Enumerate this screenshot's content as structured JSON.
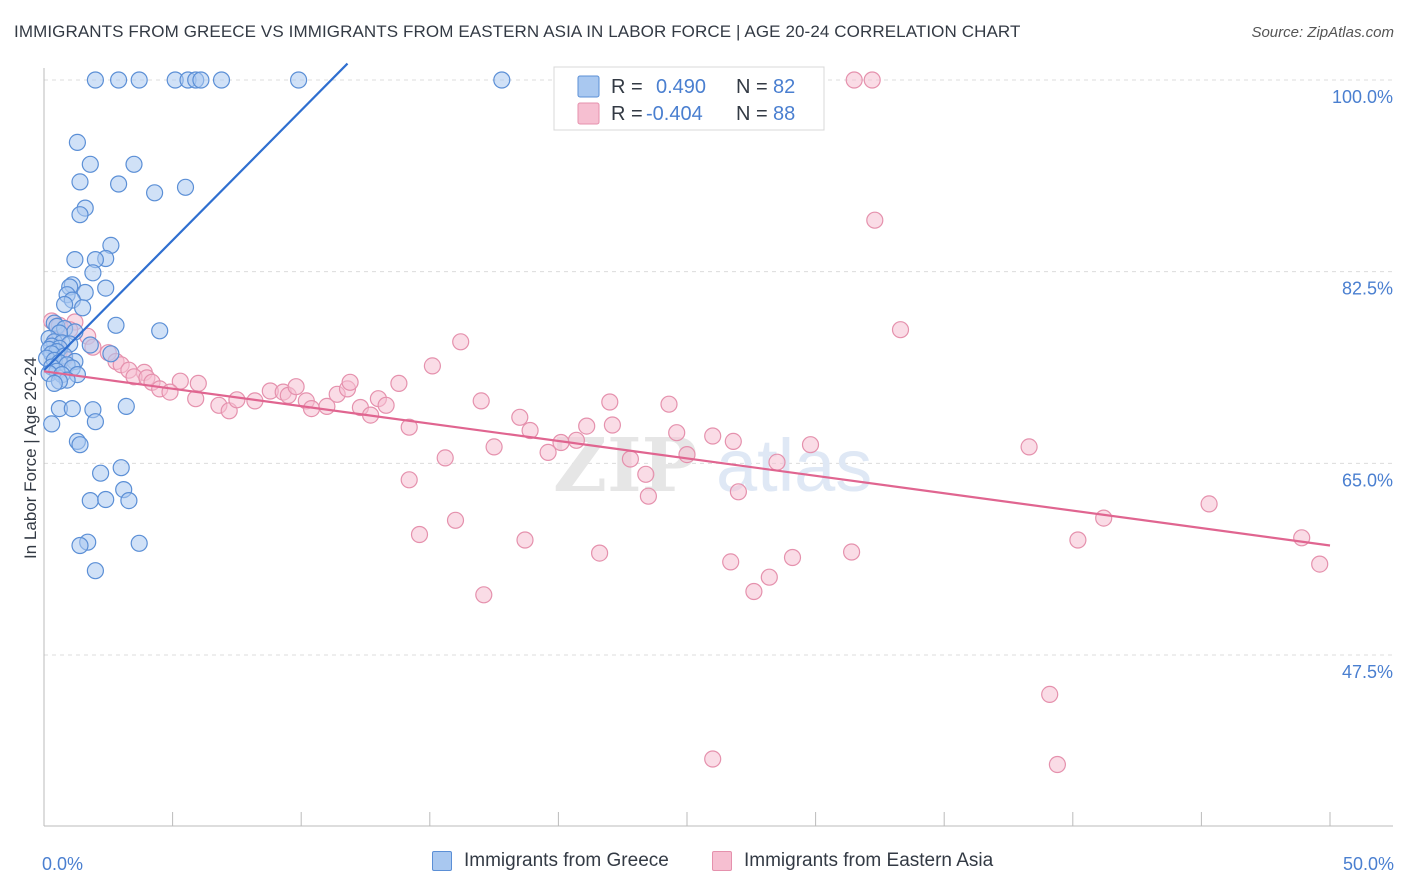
{
  "title": "IMMIGRANTS FROM GREECE VS IMMIGRANTS FROM EASTERN ASIA IN LABOR FORCE | AGE 20-24 CORRELATION CHART",
  "source": "Source: ZipAtlas.com",
  "watermark": {
    "part1": "ZIP",
    "part2": "atlas"
  },
  "colors": {
    "blue_fill": "#a9c8f0",
    "blue_stroke": "#5b8fd6",
    "blue_line": "#2f6fd0",
    "pink_fill": "#f6bfd1",
    "pink_stroke": "#e591ad",
    "pink_line": "#e06590",
    "grid": "#dcdcdc",
    "tick_text": "#4a7fd0"
  },
  "legend": {
    "r_label": "R =",
    "n_label": "N =",
    "entries": [
      {
        "r": "0.490",
        "n": "82"
      },
      {
        "r": "-0.404",
        "n": "88"
      }
    ]
  },
  "bottom_legend": [
    "Immigrants from Greece",
    "Immigrants from Eastern Asia"
  ],
  "chart_data": {
    "type": "scatter",
    "xlabel": "",
    "ylabel": "In Labor Force | Age 20-24",
    "x_ticks": [
      "0.0%",
      "50.0%"
    ],
    "y_ticks": [
      "100.0%",
      "82.5%",
      "65.0%",
      "47.5%"
    ],
    "y_tick_values": [
      100.0,
      82.5,
      65.0,
      47.5
    ],
    "xlim": [
      0,
      50
    ],
    "ylim": [
      33,
      101.5
    ],
    "grid": "horizontal dashed",
    "legend_position": "top-center",
    "series": [
      {
        "name": "Immigrants from Greece",
        "color": "#a9c8f0",
        "trend": {
          "x": [
            0,
            11.8
          ],
          "y": [
            73.5,
            101.5
          ]
        },
        "points": [
          [
            2.0,
            100
          ],
          [
            2.9,
            100
          ],
          [
            3.7,
            100
          ],
          [
            5.1,
            100
          ],
          [
            5.6,
            100
          ],
          [
            5.9,
            100
          ],
          [
            6.1,
            100
          ],
          [
            6.9,
            100
          ],
          [
            9.9,
            100
          ],
          [
            17.8,
            100
          ],
          [
            1.3,
            94.3
          ],
          [
            1.8,
            92.3
          ],
          [
            3.5,
            92.3
          ],
          [
            1.4,
            90.7
          ],
          [
            2.9,
            90.5
          ],
          [
            5.5,
            90.2
          ],
          [
            4.3,
            89.7
          ],
          [
            1.6,
            88.3
          ],
          [
            1.4,
            87.7
          ],
          [
            2.6,
            84.9
          ],
          [
            2.4,
            83.7
          ],
          [
            2.0,
            83.6
          ],
          [
            1.2,
            83.6
          ],
          [
            1.9,
            82.4
          ],
          [
            2.4,
            81.0
          ],
          [
            1.1,
            81.3
          ],
          [
            1.0,
            81.1
          ],
          [
            1.6,
            80.6
          ],
          [
            0.9,
            80.4
          ],
          [
            1.1,
            79.9
          ],
          [
            0.8,
            79.5
          ],
          [
            1.5,
            79.2
          ],
          [
            0.4,
            77.8
          ],
          [
            0.5,
            77.5
          ],
          [
            0.8,
            77.3
          ],
          [
            1.2,
            77.0
          ],
          [
            2.8,
            77.6
          ],
          [
            4.5,
            77.1
          ],
          [
            0.6,
            76.9
          ],
          [
            0.2,
            76.4
          ],
          [
            0.4,
            76.1
          ],
          [
            0.7,
            76.0
          ],
          [
            1.0,
            75.9
          ],
          [
            1.8,
            75.8
          ],
          [
            0.3,
            75.7
          ],
          [
            0.6,
            75.5
          ],
          [
            0.2,
            75.4
          ],
          [
            0.5,
            75.2
          ],
          [
            0.3,
            75.0
          ],
          [
            2.6,
            75.0
          ],
          [
            0.8,
            74.8
          ],
          [
            0.1,
            74.6
          ],
          [
            0.4,
            74.4
          ],
          [
            1.2,
            74.3
          ],
          [
            0.6,
            74.2
          ],
          [
            0.9,
            74.0
          ],
          [
            0.3,
            73.8
          ],
          [
            1.1,
            73.7
          ],
          [
            0.5,
            73.4
          ],
          [
            0.2,
            73.2
          ],
          [
            0.7,
            73.1
          ],
          [
            1.3,
            73.1
          ],
          [
            0.9,
            72.6
          ],
          [
            0.6,
            72.5
          ],
          [
            0.4,
            72.3
          ],
          [
            3.2,
            70.2
          ],
          [
            0.6,
            70.0
          ],
          [
            1.1,
            70.0
          ],
          [
            1.9,
            69.9
          ],
          [
            2.0,
            68.8
          ],
          [
            0.3,
            68.6
          ],
          [
            1.3,
            67.0
          ],
          [
            1.4,
            66.7
          ],
          [
            3.0,
            64.6
          ],
          [
            2.2,
            64.1
          ],
          [
            3.1,
            62.6
          ],
          [
            1.8,
            61.6
          ],
          [
            2.4,
            61.7
          ],
          [
            3.3,
            61.6
          ],
          [
            1.7,
            57.8
          ],
          [
            1.4,
            57.5
          ],
          [
            3.7,
            57.7
          ],
          [
            2.0,
            55.2
          ]
        ]
      },
      {
        "name": "Immigrants from Eastern Asia",
        "color": "#f6bfd1",
        "trend": {
          "x": [
            0,
            50
          ],
          "y": [
            73.4,
            57.5
          ]
        },
        "points": [
          [
            31.5,
            100
          ],
          [
            32.2,
            100
          ],
          [
            32.3,
            87.2
          ],
          [
            33.3,
            77.2
          ],
          [
            0.3,
            78.0
          ],
          [
            1.2,
            77.9
          ],
          [
            0.6,
            77.6
          ],
          [
            1.0,
            77.2
          ],
          [
            1.7,
            76.6
          ],
          [
            0.5,
            76.3
          ],
          [
            1.9,
            75.6
          ],
          [
            0.6,
            75.2
          ],
          [
            2.5,
            75.1
          ],
          [
            0.8,
            74.6
          ],
          [
            2.8,
            74.3
          ],
          [
            3.0,
            74.0
          ],
          [
            3.3,
            73.5
          ],
          [
            3.9,
            73.3
          ],
          [
            3.5,
            72.9
          ],
          [
            4.0,
            72.8
          ],
          [
            4.2,
            72.4
          ],
          [
            4.5,
            71.8
          ],
          [
            5.3,
            72.5
          ],
          [
            6.0,
            72.3
          ],
          [
            4.9,
            71.5
          ],
          [
            5.9,
            70.9
          ],
          [
            6.8,
            70.3
          ],
          [
            7.2,
            69.8
          ],
          [
            7.5,
            70.8
          ],
          [
            8.2,
            70.7
          ],
          [
            8.8,
            71.6
          ],
          [
            9.3,
            71.5
          ],
          [
            9.5,
            71.2
          ],
          [
            9.8,
            72.0
          ],
          [
            10.2,
            70.7
          ],
          [
            10.4,
            70.0
          ],
          [
            11.0,
            70.2
          ],
          [
            11.4,
            71.3
          ],
          [
            11.8,
            71.8
          ],
          [
            11.9,
            72.4
          ],
          [
            12.3,
            70.1
          ],
          [
            12.7,
            69.4
          ],
          [
            13.0,
            70.9
          ],
          [
            13.3,
            70.3
          ],
          [
            13.8,
            72.3
          ],
          [
            14.2,
            68.3
          ],
          [
            15.1,
            73.9
          ],
          [
            16.2,
            76.1
          ],
          [
            17.0,
            70.7
          ],
          [
            17.5,
            66.5
          ],
          [
            18.5,
            69.2
          ],
          [
            18.9,
            68.0
          ],
          [
            19.6,
            66.0
          ],
          [
            20.1,
            66.9
          ],
          [
            21.1,
            68.4
          ],
          [
            22.0,
            70.6
          ],
          [
            22.8,
            65.4
          ],
          [
            24.6,
            67.8
          ],
          [
            26.0,
            67.5
          ],
          [
            26.8,
            67.0
          ],
          [
            25.0,
            65.8
          ],
          [
            27.0,
            62.4
          ],
          [
            28.5,
            65.1
          ],
          [
            29.8,
            66.7
          ],
          [
            23.5,
            62.0
          ],
          [
            21.6,
            56.8
          ],
          [
            31.4,
            56.9
          ],
          [
            16.0,
            59.8
          ],
          [
            18.7,
            58.0
          ],
          [
            20.7,
            67.1
          ],
          [
            22.1,
            68.5
          ],
          [
            23.4,
            64.0
          ],
          [
            24.3,
            70.4
          ],
          [
            15.6,
            65.5
          ],
          [
            14.6,
            58.5
          ],
          [
            14.2,
            63.5
          ],
          [
            26.7,
            56.0
          ],
          [
            29.1,
            56.4
          ],
          [
            28.2,
            54.6
          ],
          [
            17.1,
            53.0
          ],
          [
            27.6,
            53.3
          ],
          [
            38.3,
            66.5
          ],
          [
            41.2,
            60.0
          ],
          [
            40.2,
            58.0
          ],
          [
            45.3,
            61.3
          ],
          [
            48.9,
            58.2
          ],
          [
            49.6,
            55.8
          ],
          [
            39.1,
            43.9
          ],
          [
            26.0,
            38.0
          ],
          [
            39.4,
            37.5
          ]
        ]
      }
    ]
  }
}
